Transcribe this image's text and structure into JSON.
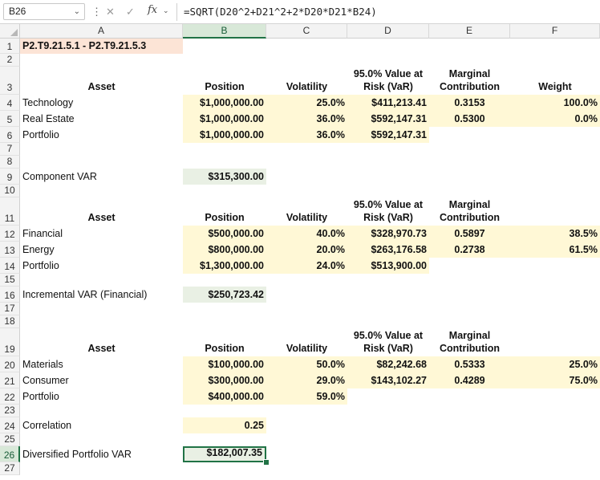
{
  "formula_bar": {
    "name_box": "B26",
    "formula": "=SQRT(D20^2+D21^2+2*D20*D21*B24)"
  },
  "columns": [
    "A",
    "B",
    "C",
    "D",
    "E",
    "F"
  ],
  "selected_column": "B",
  "selected_row": 26,
  "rows": [
    "1",
    "2",
    "3",
    "4",
    "5",
    "6",
    "7",
    "8",
    "9",
    "10",
    "11",
    "12",
    "13",
    "14",
    "15",
    "16",
    "17",
    "18",
    "19",
    "20",
    "21",
    "22",
    "23",
    "24",
    "25",
    "26",
    "27"
  ],
  "cells": {
    "A1": "P2.T9.21.5.1 - P2.T9.21.5.3",
    "A3": "Asset",
    "B3": "Position",
    "C3": "Volatility",
    "D3": "95.0% Value at Risk (VaR)",
    "E3": "Marginal Contribution",
    "F3": "Weight",
    "A4": "Technology",
    "B4": "$1,000,000.00",
    "C4": "25.0%",
    "D4": "$411,213.41",
    "E4": "0.3153",
    "F4": "100.0%",
    "A5": "Real Estate",
    "B5": "$1,000,000.00",
    "C5": "36.0%",
    "D5": "$592,147.31",
    "E5": "0.5300",
    "F5": "0.0%",
    "A6": "Portfolio",
    "B6": "$1,000,000.00",
    "C6": "36.0%",
    "D6": "$592,147.31",
    "A9": "Component VAR",
    "B9": "$315,300.00",
    "A11": "Asset",
    "B11": "Position",
    "C11": "Volatility",
    "D11": "95.0% Value at Risk (VaR)",
    "E11": "Marginal Contribution",
    "A12": "Financial",
    "B12": "$500,000.00",
    "C12": "40.0%",
    "D12": "$328,970.73",
    "E12": "0.5897",
    "F12": "38.5%",
    "A13": "Energy",
    "B13": "$800,000.00",
    "C13": "20.0%",
    "D13": "$263,176.58",
    "E13": "0.2738",
    "F13": "61.5%",
    "A14": "Portfolio",
    "B14": "$1,300,000.00",
    "C14": "24.0%",
    "D14": "$513,900.00",
    "A16": "Incremental VAR (Financial)",
    "B16": "$250,723.42",
    "A19": "Asset",
    "B19": "Position",
    "C19": "Volatility",
    "D19": "95.0% Value at Risk (VaR)",
    "E19": "Marginal Contribution",
    "A20": "Materials",
    "B20": "$100,000.00",
    "C20": "50.0%",
    "D20": "$82,242.68",
    "E20": "0.5333",
    "F20": "25.0%",
    "A21": "Consumer",
    "B21": "$300,000.00",
    "C21": "29.0%",
    "D21": "$143,102.27",
    "E21": "0.4289",
    "F21": "75.0%",
    "A22": "Portfolio",
    "B22": "$400,000.00",
    "C22": "59.0%",
    "A24": "Correlation",
    "B24": "0.25",
    "A26": "Diversified Portfolio VAR",
    "B26": "$182,007.35"
  },
  "colors": {
    "input_fill": "#fff8d6",
    "result_fill": "#e9f0e4",
    "title_fill": "#fce4d6",
    "selection": "#217346"
  }
}
